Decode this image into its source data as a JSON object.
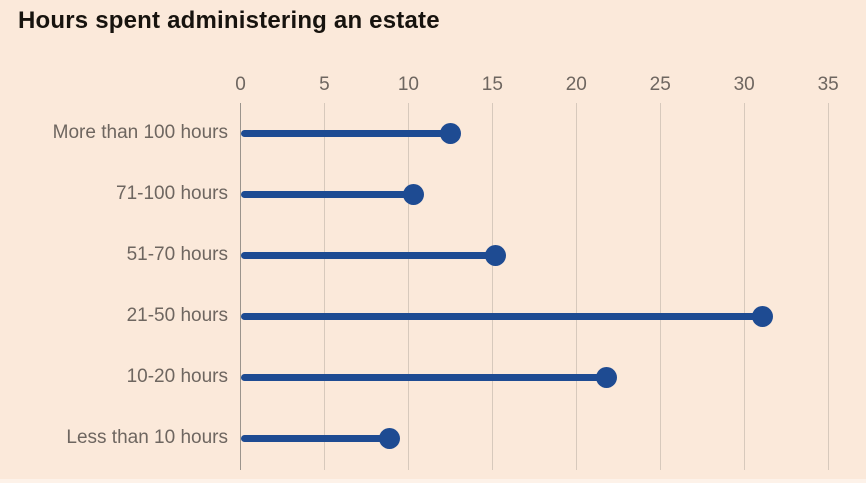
{
  "chart_data": {
    "type": "bar",
    "subtype": "horizontal-lollipop",
    "title": "Hours spent administering an estate",
    "categories": [
      "More than 100 hours",
      "71-100 hours",
      "51-70 hours",
      "21-50 hours",
      "10-20 hours",
      "Less than 10 hours"
    ],
    "values": [
      12.5,
      10.3,
      15.2,
      31.1,
      21.8,
      8.9
    ],
    "x_ticks": [
      0,
      5,
      10,
      15,
      20,
      25,
      30,
      35
    ],
    "xlim": [
      0,
      35
    ],
    "xlabel": "",
    "ylabel": "",
    "legend": "none",
    "grid": "vertical-only",
    "axis_position": "top",
    "colors": {
      "background": "#fbe9da",
      "lollipop": "#1e4b92",
      "gridline": "#d7c9bc",
      "zero_line": "#9b948c",
      "title_text": "#17130e",
      "label_text": "#6e6660",
      "bottom_edge": "#fdf2e9"
    }
  }
}
